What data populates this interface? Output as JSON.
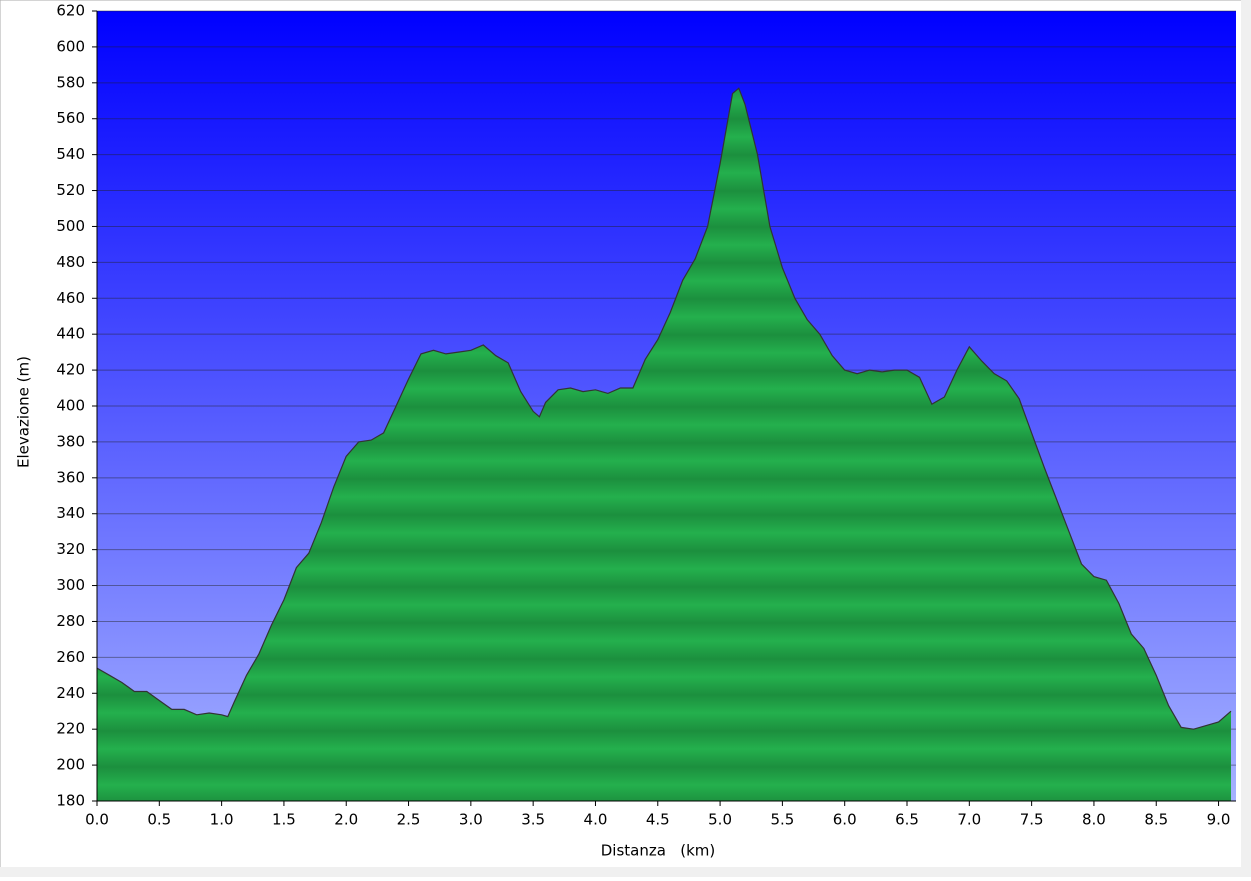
{
  "chart_data": {
    "type": "area",
    "x_label": "Distanza   (km)",
    "y_label": "Elevazione (m)",
    "x": [
      0.0,
      0.1,
      0.2,
      0.3,
      0.4,
      0.5,
      0.6,
      0.7,
      0.8,
      0.9,
      1.0,
      1.05,
      1.1,
      1.2,
      1.3,
      1.4,
      1.5,
      1.6,
      1.7,
      1.8,
      1.9,
      2.0,
      2.1,
      2.2,
      2.3,
      2.4,
      2.5,
      2.6,
      2.7,
      2.8,
      2.9,
      3.0,
      3.1,
      3.2,
      3.3,
      3.4,
      3.5,
      3.55,
      3.6,
      3.7,
      3.8,
      3.9,
      4.0,
      4.1,
      4.2,
      4.3,
      4.4,
      4.5,
      4.6,
      4.7,
      4.8,
      4.9,
      5.0,
      5.1,
      5.15,
      5.2,
      5.3,
      5.4,
      5.5,
      5.6,
      5.7,
      5.8,
      5.9,
      6.0,
      6.1,
      6.2,
      6.3,
      6.4,
      6.5,
      6.6,
      6.7,
      6.8,
      6.9,
      7.0,
      7.1,
      7.2,
      7.3,
      7.4,
      7.5,
      7.6,
      7.7,
      7.8,
      7.9,
      8.0,
      8.1,
      8.2,
      8.3,
      8.4,
      8.5,
      8.6,
      8.7,
      8.8,
      8.9,
      9.0,
      9.1
    ],
    "values": [
      254,
      250,
      246,
      241,
      241,
      236,
      231,
      231,
      228,
      229,
      228,
      227,
      235,
      250,
      262,
      278,
      292,
      310,
      318,
      335,
      355,
      372,
      380,
      381,
      385,
      400,
      415,
      429,
      431,
      429,
      430,
      431,
      434,
      428,
      424,
      408,
      397,
      394,
      402,
      409,
      410,
      408,
      409,
      407,
      410,
      410,
      426,
      437,
      452,
      470,
      482,
      500,
      535,
      574,
      577,
      568,
      540,
      500,
      477,
      460,
      448,
      440,
      428,
      420,
      418,
      420,
      419,
      420,
      420,
      416,
      401,
      405,
      420,
      433,
      425,
      418,
      414,
      404,
      385,
      366,
      348,
      330,
      312,
      305,
      303,
      290,
      273,
      265,
      250,
      233,
      221,
      220,
      222,
      224,
      230
    ],
    "color": "#22a84a",
    "xlim": [
      0,
      9.14
    ],
    "ylim": [
      180,
      620
    ],
    "xticks": [
      {
        "value": 0,
        "label": "0.0"
      },
      0.5,
      {
        "value": 1,
        "label": "1.0"
      },
      1.5,
      {
        "value": 2,
        "label": "2.0"
      },
      2.5,
      {
        "value": 3,
        "label": "3.0"
      },
      3.5,
      {
        "value": 4,
        "label": "4.0"
      },
      4.5,
      {
        "value": 5,
        "label": "5.0"
      },
      5.5,
      {
        "value": 6,
        "label": "6.0"
      },
      6.5,
      {
        "value": 7,
        "label": "7.0"
      },
      7.5,
      {
        "value": 8,
        "label": "8.0"
      },
      8.5,
      {
        "value": 9,
        "label": "9.0"
      }
    ],
    "yticks": [
      180,
      200,
      220,
      240,
      260,
      280,
      300,
      320,
      340,
      360,
      380,
      400,
      420,
      440,
      460,
      480,
      500,
      520,
      540,
      560,
      580,
      600,
      620
    ],
    "grid": true
  }
}
